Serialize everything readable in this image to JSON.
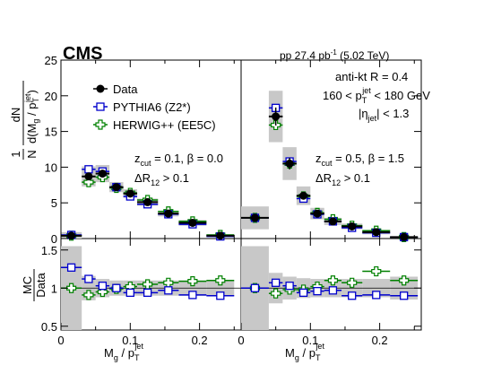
{
  "header": {
    "experiment": "CMS",
    "lumi_text": "pp 27.4 pb",
    "lumi_sup": "-1",
    "energy_text": " (5.02 TeV)"
  },
  "legend": {
    "data": "Data",
    "pythia": "PYTHIA6 (Z2*)",
    "herwig": "HERWIG++ (EE5C)"
  },
  "annotations": {
    "algo": "anti-kt R = 0.4",
    "pt_range_pre": "160 < p",
    "pt_range_sub": "T",
    "pt_range_sup": "jet",
    "pt_range_post": " < 180 GeV",
    "eta_pre": "|η",
    "eta_sub": "jet",
    "eta_post": "| < 1.3",
    "left_z_pre": "z",
    "left_z_sub": "cut",
    "left_z_post": " = 0.1, β = 0.0",
    "left_dr_pre": "ΔR",
    "left_dr_sub": "12",
    "left_dr_post": " > 0.1",
    "right_z_pre": "z",
    "right_z_sub": "cut",
    "right_z_post": " = 0.5, β = 1.5",
    "right_dr_pre": "ΔR",
    "right_dr_sub": "12",
    "right_dr_post": " > 0.1"
  },
  "axes": {
    "ylabel_top": {
      "frac_num": "1",
      "frac_den": "N",
      "num": "dN",
      "den_a": "d(M",
      "den_g": "g",
      "den_b": " / p",
      "den_t": "T",
      "den_jet": "jet",
      "den_c": ")"
    },
    "ylabel_bottom": {
      "num": "MC",
      "den": "Data"
    },
    "xlabel": {
      "pre": "M",
      "sub": "g",
      "mid": " / p",
      "sub2": "T",
      "sup": "jet"
    }
  },
  "colors": {
    "data": "#000000",
    "pythia": "#0000cc",
    "herwig": "#008000",
    "band": "#c8c8c8"
  },
  "chart_data": [
    {
      "type": "scatter",
      "panel": "left-top",
      "xlim": [
        0,
        0.26
      ],
      "ylim": [
        0,
        25
      ],
      "xticks": [
        "0",
        "0.1",
        "0.2"
      ],
      "yticks": [
        "0",
        "5",
        "10",
        "15",
        "20",
        "25"
      ],
      "bins": [
        [
          0.0,
          0.03
        ],
        [
          0.03,
          0.05
        ],
        [
          0.05,
          0.07
        ],
        [
          0.07,
          0.09
        ],
        [
          0.09,
          0.11
        ],
        [
          0.11,
          0.14
        ],
        [
          0.14,
          0.17
        ],
        [
          0.17,
          0.21
        ],
        [
          0.21,
          0.25
        ]
      ],
      "series": [
        {
          "name": "Data",
          "values": [
            0.4,
            8.7,
            9.1,
            7.2,
            6.3,
            5.1,
            3.5,
            2.2,
            0.4
          ],
          "unc": [
            0.5,
            1.4,
            1.2,
            0.7,
            0.6,
            0.5,
            0.4,
            0.4,
            0.2
          ]
        },
        {
          "name": "PYTHIA6 (Z2*)",
          "values": [
            0.5,
            9.7,
            9.4,
            7.2,
            5.9,
            4.8,
            3.4,
            2.0,
            0.3
          ]
        },
        {
          "name": "HERWIG++ (EE5C)",
          "values": [
            0.4,
            7.9,
            8.6,
            7.1,
            6.4,
            5.4,
            3.8,
            2.4,
            0.5
          ]
        }
      ]
    },
    {
      "type": "scatter",
      "panel": "right-top",
      "xlim": [
        0,
        0.26
      ],
      "ylim": [
        0,
        25
      ],
      "xticks": [
        "0",
        "0.1",
        "0.2"
      ],
      "yticks": [],
      "bins": [
        [
          0.0,
          0.04
        ],
        [
          0.04,
          0.06
        ],
        [
          0.06,
          0.08
        ],
        [
          0.08,
          0.1
        ],
        [
          0.1,
          0.12
        ],
        [
          0.12,
          0.145
        ],
        [
          0.145,
          0.175
        ],
        [
          0.175,
          0.215
        ],
        [
          0.215,
          0.255
        ]
      ],
      "series": [
        {
          "name": "Data",
          "values": [
            2.9,
            17.1,
            10.5,
            6.0,
            3.5,
            2.4,
            1.7,
            0.9,
            0.2
          ],
          "unc": [
            1.6,
            3.6,
            2.3,
            1.3,
            0.8,
            0.5,
            0.4,
            0.3,
            0.1
          ]
        },
        {
          "name": "PYTHIA6 (Z2*)",
          "values": [
            2.9,
            18.3,
            10.8,
            5.6,
            3.4,
            2.4,
            1.5,
            0.8,
            0.2
          ]
        },
        {
          "name": "HERWIG++ (EE5C)",
          "values": [
            2.9,
            15.9,
            10.5,
            5.9,
            3.6,
            2.7,
            1.8,
            1.1,
            0.2
          ]
        }
      ]
    },
    {
      "type": "scatter",
      "panel": "left-bottom",
      "xlim": [
        0,
        0.26
      ],
      "ylim": [
        0.45,
        1.65
      ],
      "xticks": [
        "0",
        "0.1",
        "0.2"
      ],
      "yticks": [
        "0.5",
        "1",
        "1.5"
      ],
      "bins": [
        [
          0.0,
          0.03
        ],
        [
          0.03,
          0.05
        ],
        [
          0.05,
          0.07
        ],
        [
          0.07,
          0.09
        ],
        [
          0.09,
          0.11
        ],
        [
          0.11,
          0.14
        ],
        [
          0.14,
          0.17
        ],
        [
          0.17,
          0.21
        ],
        [
          0.21,
          0.25
        ]
      ],
      "band": [
        0.55,
        0.16,
        0.12,
        0.1,
        0.1,
        0.1,
        0.1,
        0.1,
        0.1
      ],
      "series": [
        {
          "name": "PYTHIA6 (Z2*)",
          "values": [
            1.27,
            1.12,
            1.03,
            1.0,
            0.94,
            0.94,
            0.97,
            0.91,
            0.9
          ]
        },
        {
          "name": "HERWIG++ (EE5C)",
          "values": [
            1.0,
            0.91,
            0.95,
            0.99,
            1.02,
            1.05,
            1.07,
            1.09,
            1.1
          ]
        }
      ]
    },
    {
      "type": "scatter",
      "panel": "right-bottom",
      "xlim": [
        0,
        0.26
      ],
      "ylim": [
        0.45,
        1.65
      ],
      "xticks": [
        "0",
        "0.1",
        "0.2"
      ],
      "yticks": [],
      "bins": [
        [
          0.0,
          0.04
        ],
        [
          0.04,
          0.06
        ],
        [
          0.06,
          0.08
        ],
        [
          0.08,
          0.1
        ],
        [
          0.1,
          0.12
        ],
        [
          0.12,
          0.145
        ],
        [
          0.145,
          0.175
        ],
        [
          0.175,
          0.215
        ],
        [
          0.215,
          0.255
        ]
      ],
      "band": [
        0.55,
        0.2,
        0.15,
        0.13,
        0.12,
        0.12,
        0.12,
        0.12,
        0.15
      ],
      "series": [
        {
          "name": "PYTHIA6 (Z2*)",
          "values": [
            1.0,
            1.07,
            1.03,
            0.94,
            0.96,
            0.97,
            0.9,
            0.91,
            0.9
          ]
        },
        {
          "name": "HERWIG++ (EE5C)",
          "values": [
            1.0,
            0.93,
            0.98,
            0.98,
            1.02,
            1.1,
            1.07,
            1.22,
            1.1
          ]
        }
      ]
    }
  ]
}
